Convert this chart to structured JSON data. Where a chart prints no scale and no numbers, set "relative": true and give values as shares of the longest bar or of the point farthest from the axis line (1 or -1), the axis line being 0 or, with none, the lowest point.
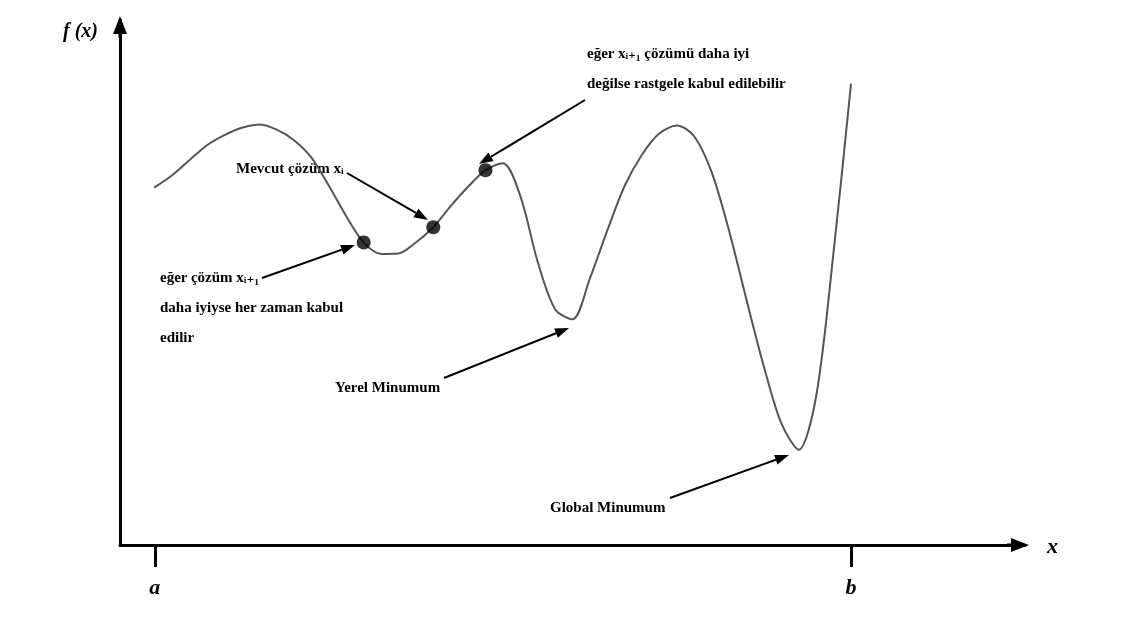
{
  "chart_data": {
    "type": "line",
    "relative": true,
    "xlabel": "x",
    "ylabel": "f (x)",
    "tick_labels": "x",
    "grid": false,
    "categories": [
      null,
      null,
      "a",
      null,
      null,
      null,
      null,
      null,
      null,
      null,
      null,
      null,
      null,
      null,
      null,
      null,
      null,
      null,
      null,
      null,
      null,
      null,
      null,
      null,
      null,
      null,
      null,
      null,
      null,
      null,
      null,
      null,
      null,
      null,
      null,
      null,
      null,
      null,
      null,
      null,
      null,
      null,
      "b",
      null,
      null,
      null,
      null,
      null,
      null,
      null,
      null,
      null,
      null
    ],
    "series": [
      {
        "color": "#555555",
        "values": [
          null,
          null,
          0.777,
          0.803,
          0.836,
          0.868,
          0.89,
          0.906,
          0.913,
          0.902,
          0.879,
          0.841,
          0.78,
          0.714,
          0.657,
          0.632,
          0.633,
          0.657,
          0.69,
          0.736,
          0.778,
          0.814,
          0.829,
          0.758,
          0.615,
          0.512,
          0.49,
          0.579,
          0.683,
          0.78,
          0.848,
          0.894,
          0.911,
          0.887,
          0.809,
          0.682,
          0.532,
          0.387,
          0.264,
          0.207,
          0.323,
          0.636,
          1.0,
          null,
          null,
          null,
          null,
          null,
          null,
          null,
          null,
          null,
          null
        ]
      },
      {
        "type": "scatter",
        "color": "#000000",
        "values": [
          null,
          null,
          null,
          null,
          null,
          null,
          null,
          null,
          null,
          null,
          null,
          null,
          null,
          null,
          0.657,
          null,
          null,
          null,
          0.69,
          null,
          null,
          0.814,
          null,
          null,
          null,
          null,
          null,
          null,
          null,
          null,
          null,
          null,
          null,
          null,
          null,
          null,
          null,
          null,
          null,
          null,
          null,
          null,
          null,
          null,
          null,
          null,
          null,
          null,
          null,
          null,
          null,
          null,
          null
        ]
      }
    ],
    "annotations": [
      "Mevcut çözüm xᵢ",
      "eğer xᵢ₊₁ çözümü daha iyi değilse rastgele kabul edilebilir",
      "eğer çözüm xᵢ₊₁ daha iyiyse her zaman kabul edilir",
      "Yerel Minumum",
      "Global Minumum"
    ]
  }
}
